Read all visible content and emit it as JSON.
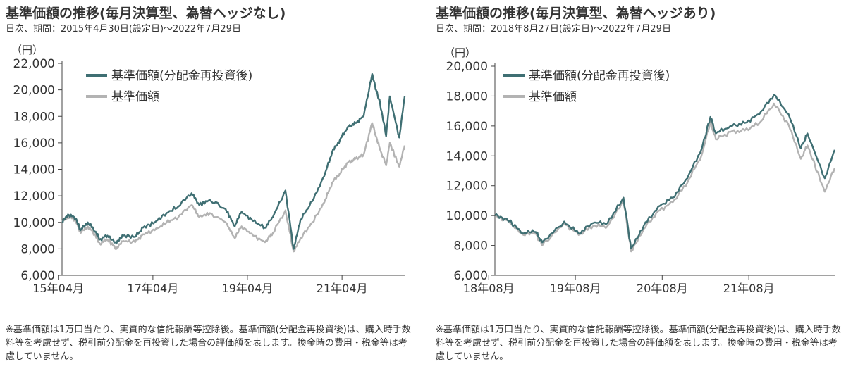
{
  "panels": [
    {
      "title": "基準価額の推移(毎月決算型、為替ヘッジなし)",
      "subtitle": "日次、期間：2015年4月30日(設定日)〜2022年7月29日",
      "note": "※基準価額は1万口当たり、実質的な信託報酬等控除後。基準価額(分配金再投資後)は、購入時手数料等を考慮せず、税引前分配金を再投資した場合の評価額を表します。換金時の費用・税金等は考慮していません。"
    },
    {
      "title": "基準価額の推移(毎月決算型、為替ヘッジあり)",
      "subtitle": "日次、期間：2018年8月27日(設定日)〜2022年7月29日",
      "note": "※基準価額は1万口当たり、実質的な信託報酬等控除後。基準価額(分配金再投資後)は、購入時手数料等を考慮せず、税引前分配金を再投資した場合の評価額を表します。換金時の費用・税金等は考慮していません。"
    }
  ],
  "colors": {
    "reinvested": "#3f6f73",
    "nav": "#b3b3b3",
    "axis": "#444444"
  },
  "chart_data": [
    {
      "type": "line",
      "unit_label": "（円）",
      "ylim": [
        6000,
        22000
      ],
      "y_ticks": [
        6000,
        8000,
        10000,
        12000,
        14000,
        16000,
        18000,
        20000,
        22000
      ],
      "y_tick_labels": [
        "6,000",
        "8,000",
        "10,000",
        "12,000",
        "14,000",
        "16,000",
        "18,000",
        "20,000",
        "22,000"
      ],
      "x_ticks": [
        "2015-04",
        "2017-04",
        "2019-04",
        "2021-04"
      ],
      "x_tick_labels": [
        "15年04月",
        "17年04月",
        "19年04月",
        "21年04月"
      ],
      "legend_position": "top-left",
      "grid": false,
      "series": [
        {
          "name": "基準価額(分配金再投資後)",
          "color": "#3f6f73",
          "points": [
            [
              "2015-04-30",
              10000
            ],
            [
              "2015-06-15",
              10600
            ],
            [
              "2015-08-15",
              10300
            ],
            [
              "2015-09-20",
              9400
            ],
            [
              "2015-11-15",
              10000
            ],
            [
              "2016-01-15",
              9300
            ],
            [
              "2016-02-15",
              8700
            ],
            [
              "2016-04-15",
              9000
            ],
            [
              "2016-06-24",
              8400
            ],
            [
              "2016-08-15",
              9000
            ],
            [
              "2016-11-15",
              8900
            ],
            [
              "2017-01-15",
              9600
            ],
            [
              "2017-04-15",
              10000
            ],
            [
              "2017-07-15",
              10700
            ],
            [
              "2017-10-15",
              11200
            ],
            [
              "2018-01-25",
              12200
            ],
            [
              "2018-03-25",
              11300
            ],
            [
              "2018-06-15",
              11700
            ],
            [
              "2018-10-15",
              11000
            ],
            [
              "2018-12-25",
              9700
            ],
            [
              "2019-02-15",
              10800
            ],
            [
              "2019-05-15",
              10100
            ],
            [
              "2019-08-15",
              9600
            ],
            [
              "2019-10-15",
              10400
            ],
            [
              "2020-01-20",
              12400
            ],
            [
              "2020-03-23",
              8000
            ],
            [
              "2020-05-15",
              10200
            ],
            [
              "2020-08-15",
              11600
            ],
            [
              "2020-11-15",
              13500
            ],
            [
              "2021-01-15",
              15300
            ],
            [
              "2021-03-15",
              16200
            ],
            [
              "2021-05-15",
              17200
            ],
            [
              "2021-07-15",
              17500
            ],
            [
              "2021-09-15",
              18000
            ],
            [
              "2021-11-20",
              21200
            ],
            [
              "2021-12-20",
              20000
            ],
            [
              "2022-01-20",
              19000
            ],
            [
              "2022-03-08",
              16500
            ],
            [
              "2022-04-05",
              19500
            ],
            [
              "2022-06-17",
              16400
            ],
            [
              "2022-07-29",
              19500
            ]
          ]
        },
        {
          "name": "基準価額",
          "color": "#b3b3b3",
          "points": [
            [
              "2015-04-30",
              10000
            ],
            [
              "2015-06-15",
              10500
            ],
            [
              "2015-08-15",
              10100
            ],
            [
              "2015-09-20",
              9200
            ],
            [
              "2015-11-15",
              9700
            ],
            [
              "2016-01-15",
              9000
            ],
            [
              "2016-02-15",
              8400
            ],
            [
              "2016-04-15",
              8700
            ],
            [
              "2016-06-24",
              8000
            ],
            [
              "2016-08-15",
              8600
            ],
            [
              "2016-11-15",
              8500
            ],
            [
              "2017-01-15",
              9100
            ],
            [
              "2017-04-15",
              9400
            ],
            [
              "2017-07-15",
              10000
            ],
            [
              "2017-10-15",
              10400
            ],
            [
              "2018-01-25",
              11300
            ],
            [
              "2018-03-25",
              10400
            ],
            [
              "2018-06-15",
              10700
            ],
            [
              "2018-10-15",
              10000
            ],
            [
              "2018-12-25",
              8800
            ],
            [
              "2019-02-15",
              9700
            ],
            [
              "2019-05-15",
              9000
            ],
            [
              "2019-08-15",
              8500
            ],
            [
              "2019-10-15",
              9200
            ],
            [
              "2020-01-20",
              10900
            ],
            [
              "2020-03-23",
              7800
            ],
            [
              "2020-05-15",
              8800
            ],
            [
              "2020-08-15",
              10000
            ],
            [
              "2020-11-15",
              11500
            ],
            [
              "2021-01-15",
              13000
            ],
            [
              "2021-03-15",
              13700
            ],
            [
              "2021-05-15",
              14500
            ],
            [
              "2021-07-15",
              14800
            ],
            [
              "2021-09-15",
              15100
            ],
            [
              "2021-11-20",
              17500
            ],
            [
              "2021-12-20",
              16500
            ],
            [
              "2022-01-20",
              15500
            ],
            [
              "2022-03-08",
              14300
            ],
            [
              "2022-04-05",
              16000
            ],
            [
              "2022-06-17",
              14200
            ],
            [
              "2022-07-29",
              15800
            ]
          ]
        }
      ]
    },
    {
      "type": "line",
      "unit_label": "（円）",
      "ylim": [
        6000,
        20000
      ],
      "y_ticks": [
        6000,
        8000,
        10000,
        12000,
        14000,
        16000,
        18000,
        20000
      ],
      "y_tick_labels": [
        "6,000",
        "8,000",
        "10,000",
        "12,000",
        "14,000",
        "16,000",
        "18,000",
        "20,000"
      ],
      "x_ticks": [
        "2018-08",
        "2019-08",
        "2020-08",
        "2021-08"
      ],
      "x_tick_labels": [
        "18年08月",
        "19年08月",
        "20年08月",
        "21年08月"
      ],
      "legend_position": "top-left",
      "grid": false,
      "series": [
        {
          "name": "基準価額(分配金再投資後)",
          "color": "#3f6f73",
          "points": [
            [
              "2018-08-27",
              10000
            ],
            [
              "2018-10-15",
              9800
            ],
            [
              "2018-12-25",
              8800
            ],
            [
              "2019-02-15",
              8900
            ],
            [
              "2019-03-15",
              8200
            ],
            [
              "2019-06-15",
              9600
            ],
            [
              "2019-08-15",
              8800
            ],
            [
              "2019-10-15",
              9500
            ],
            [
              "2019-12-15",
              9500
            ],
            [
              "2020-02-20",
              11200
            ],
            [
              "2020-03-23",
              7800
            ],
            [
              "2020-05-15",
              9300
            ],
            [
              "2020-07-15",
              10600
            ],
            [
              "2020-09-15",
              11200
            ],
            [
              "2020-11-15",
              12500
            ],
            [
              "2021-01-15",
              14500
            ],
            [
              "2021-02-20",
              16600
            ],
            [
              "2021-03-15",
              15500
            ],
            [
              "2021-05-15",
              16000
            ],
            [
              "2021-07-15",
              16200
            ],
            [
              "2021-09-15",
              16800
            ],
            [
              "2021-11-15",
              18100
            ],
            [
              "2022-01-15",
              16800
            ],
            [
              "2022-03-08",
              14500
            ],
            [
              "2022-04-05",
              15500
            ],
            [
              "2022-06-17",
              12500
            ],
            [
              "2022-07-29",
              14400
            ]
          ]
        },
        {
          "name": "基準価額",
          "color": "#b3b3b3",
          "points": [
            [
              "2018-08-27",
              10000
            ],
            [
              "2018-10-15",
              9700
            ],
            [
              "2018-12-25",
              8700
            ],
            [
              "2019-02-15",
              8800
            ],
            [
              "2019-03-15",
              8000
            ],
            [
              "2019-06-15",
              9500
            ],
            [
              "2019-08-15",
              8700
            ],
            [
              "2019-10-15",
              9300
            ],
            [
              "2019-12-15",
              9300
            ],
            [
              "2020-02-20",
              11000
            ],
            [
              "2020-03-23",
              7600
            ],
            [
              "2020-05-15",
              9100
            ],
            [
              "2020-07-15",
              10300
            ],
            [
              "2020-09-15",
              10900
            ],
            [
              "2020-11-15",
              12200
            ],
            [
              "2021-01-15",
              14100
            ],
            [
              "2021-02-20",
              16300
            ],
            [
              "2021-03-15",
              15100
            ],
            [
              "2021-05-15",
              15600
            ],
            [
              "2021-07-15",
              15700
            ],
            [
              "2021-09-15",
              16200
            ],
            [
              "2021-11-15",
              17500
            ],
            [
              "2022-01-15",
              16100
            ],
            [
              "2022-03-08",
              13800
            ],
            [
              "2022-04-05",
              14700
            ],
            [
              "2022-06-17",
              11600
            ],
            [
              "2022-07-29",
              13200
            ]
          ]
        }
      ]
    }
  ]
}
